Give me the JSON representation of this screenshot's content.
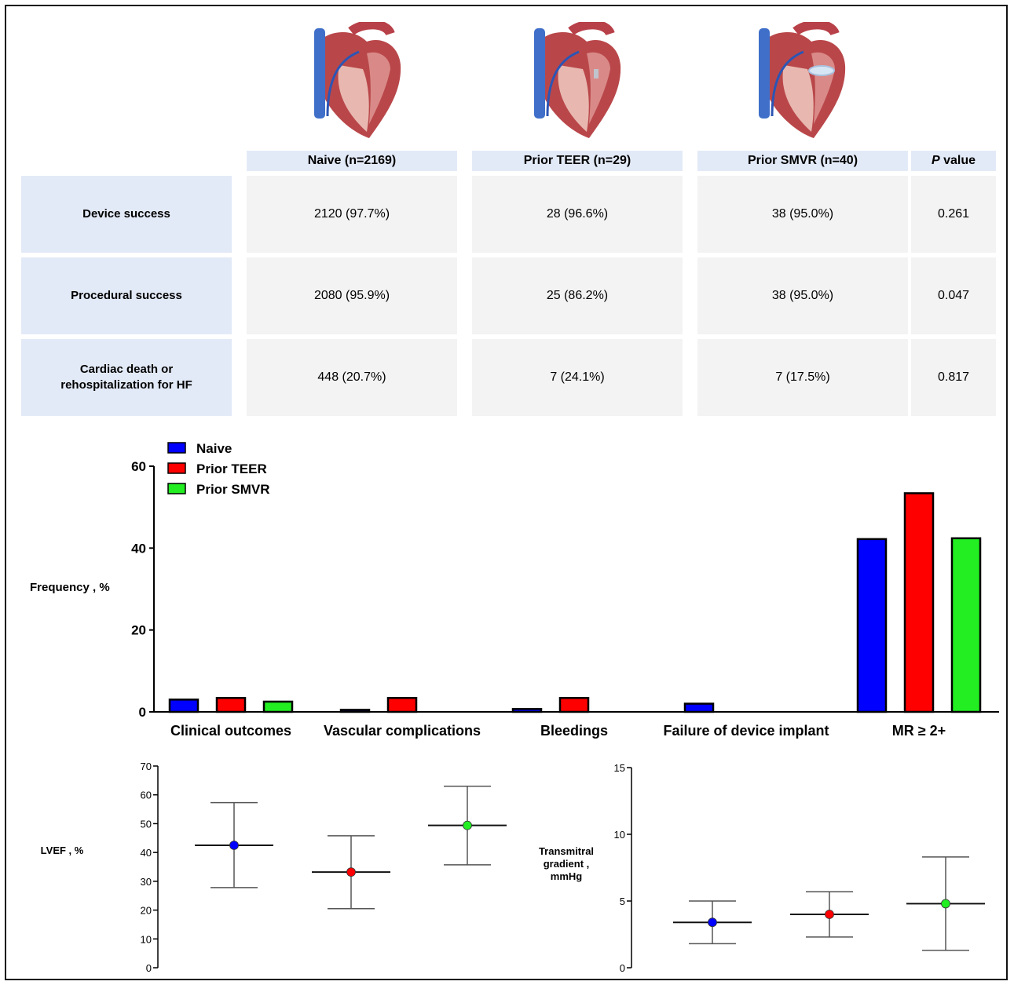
{
  "table": {
    "columns": [
      "Naive (n=2169)",
      "Prior TEER (n=29)",
      "Prior SMVR (n=40)",
      "value"
    ],
    "p_prefix": "P",
    "rows": [
      {
        "label": "Device success",
        "values": [
          "2120 (97.7%)",
          "28 (96.6%)",
          "38 (95.0%)",
          "0.261"
        ]
      },
      {
        "label": "Procedural success",
        "values": [
          "2080 (95.9%)",
          "25 (86.2%)",
          "38 (95.0%)",
          "0.047"
        ]
      },
      {
        "label": "Cardiac death or rehospitalization for HF",
        "values": [
          "448 (20.7%)",
          "7 (24.1%)",
          "7 (17.5%)",
          "0.817"
        ]
      }
    ]
  },
  "colors": {
    "naive": "#0000ff",
    "prior_teer": "#ff0000",
    "prior_smvr": "#22ee22",
    "cell_header": "#dde6f7",
    "cell_value": "#f3f3f3"
  },
  "chart_data": [
    {
      "type": "bar",
      "ylabel": "Frequency , %",
      "ylim": [
        0,
        60
      ],
      "yticks": [
        "0",
        "20",
        "40",
        "60"
      ],
      "categories": [
        "Clinical outcomes",
        "Vascular  complications",
        "Bleedings",
        "Failure of device implant",
        "MR ≥ 2+"
      ],
      "legend_position": "top-left",
      "series": [
        {
          "name": "Naive",
          "values": [
            3.0,
            0.5,
            0.7,
            2.0,
            42.2
          ]
        },
        {
          "name": "Prior TEER",
          "values": [
            3.4,
            3.4,
            3.4,
            0,
            53.4
          ]
        },
        {
          "name": "Prior SMVR",
          "values": [
            2.5,
            0,
            0,
            0,
            42.4
          ]
        }
      ]
    },
    {
      "type": "scatter",
      "ylabel": "LVEF , %",
      "ylim": [
        0,
        70
      ],
      "yticks": [
        "0",
        "10",
        "20",
        "30",
        "40",
        "50",
        "60",
        "70"
      ],
      "points": [
        {
          "group": "Naive",
          "mean": 42.5,
          "lower": 27.8,
          "upper": 57.3
        },
        {
          "group": "Prior TEER",
          "mean": 33.2,
          "lower": 20.5,
          "upper": 45.8
        },
        {
          "group": "Prior SMVR",
          "mean": 49.4,
          "lower": 35.7,
          "upper": 63.0
        }
      ]
    },
    {
      "type": "scatter",
      "ylabel": "Transmitral gradient , mmHg",
      "ylim": [
        0,
        15
      ],
      "yticks": [
        "0",
        "5",
        "10",
        "15"
      ],
      "points": [
        {
          "group": "Naive",
          "mean": 3.4,
          "lower": 1.8,
          "upper": 5.0
        },
        {
          "group": "Prior TEER",
          "mean": 4.0,
          "lower": 2.3,
          "upper": 5.7
        },
        {
          "group": "Prior SMVR",
          "mean": 4.8,
          "lower": 1.3,
          "upper": 8.3
        }
      ]
    }
  ]
}
